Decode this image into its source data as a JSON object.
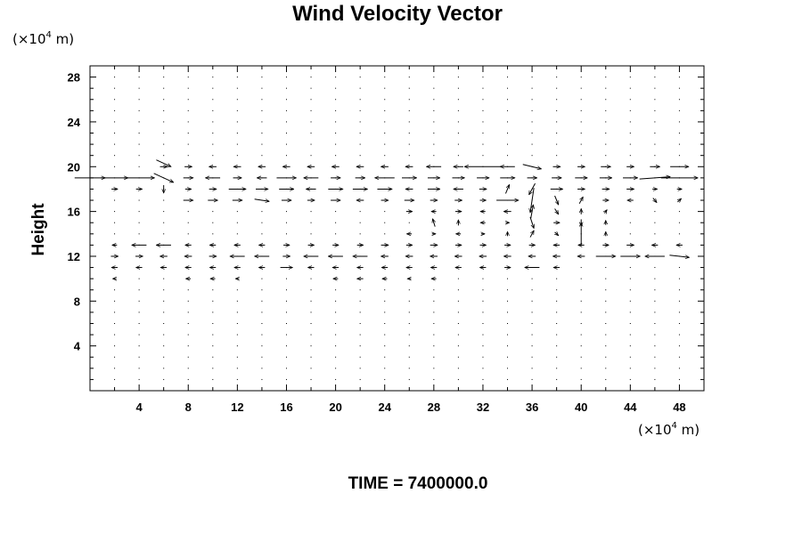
{
  "chart_data": {
    "type": "vector_field",
    "title": "Wind Velocity Vector",
    "ylabel": "Height",
    "y_unit": {
      "prefix": "(×10",
      "exponent": "4",
      "suffix": " m)"
    },
    "x_unit": {
      "prefix": "(×10",
      "exponent": "4",
      "suffix": " m)"
    },
    "xlim": [
      0,
      50
    ],
    "ylim": [
      0,
      29
    ],
    "x_ticks": [
      4,
      8,
      12,
      16,
      20,
      24,
      28,
      32,
      36,
      40,
      44,
      48
    ],
    "y_ticks": [
      4,
      8,
      12,
      16,
      20,
      24,
      28
    ],
    "time_label": "TIME = 7400000.0",
    "grid": "dots at every grid node (x step 2, y step 1)",
    "vectors": [
      {
        "x": 0.0,
        "y": 19,
        "u": 2.5,
        "v": 0.0
      },
      {
        "x": 2.0,
        "y": 19,
        "u": 2.2,
        "v": 0.0
      },
      {
        "x": 4.0,
        "y": 19,
        "u": 2.5,
        "v": 0.0
      },
      {
        "x": 6.0,
        "y": 19,
        "u": 1.6,
        "v": -0.8
      },
      {
        "x": 8.0,
        "y": 19,
        "u": 0.8,
        "v": 0.0
      },
      {
        "x": 10.0,
        "y": 19,
        "u": -1.2,
        "v": 0.0
      },
      {
        "x": 12.0,
        "y": 19,
        "u": 0.7,
        "v": 0.0
      },
      {
        "x": 14.0,
        "y": 19,
        "u": -0.8,
        "v": 0.0
      },
      {
        "x": 16.0,
        "y": 19,
        "u": 1.6,
        "v": 0.0
      },
      {
        "x": 18.0,
        "y": 19,
        "u": -1.2,
        "v": 0.0
      },
      {
        "x": 20.0,
        "y": 19,
        "u": 0.8,
        "v": 0.0
      },
      {
        "x": 22.0,
        "y": 19,
        "u": 0.8,
        "v": 0.0
      },
      {
        "x": 24.0,
        "y": 19,
        "u": -1.6,
        "v": 0.0
      },
      {
        "x": 26.0,
        "y": 19,
        "u": 1.2,
        "v": 0.0
      },
      {
        "x": 28.0,
        "y": 19,
        "u": 1.0,
        "v": 0.0
      },
      {
        "x": 30.0,
        "y": 19,
        "u": 1.0,
        "v": 0.0
      },
      {
        "x": 32.0,
        "y": 19,
        "u": 1.0,
        "v": 0.0
      },
      {
        "x": 34.0,
        "y": 19,
        "u": 1.2,
        "v": 0.0
      },
      {
        "x": 36.0,
        "y": 19,
        "u": 0.8,
        "v": 0.0
      },
      {
        "x": 38.0,
        "y": 19,
        "u": 0.8,
        "v": 0.0
      },
      {
        "x": 40.0,
        "y": 19,
        "u": 1.0,
        "v": 0.0
      },
      {
        "x": 42.0,
        "y": 19,
        "u": 1.0,
        "v": 0.0
      },
      {
        "x": 44.0,
        "y": 19,
        "u": 1.2,
        "v": 0.0
      },
      {
        "x": 46.0,
        "y": 19,
        "u": 2.5,
        "v": 0.2
      },
      {
        "x": 48.0,
        "y": 19,
        "u": 3.0,
        "v": 0.0
      },
      {
        "x": 6.0,
        "y": 20,
        "u": 0.6,
        "v": 0.0
      },
      {
        "x": 8.0,
        "y": 20,
        "u": 0.6,
        "v": 0.0
      },
      {
        "x": 10.0,
        "y": 20,
        "u": -0.6,
        "v": 0.0
      },
      {
        "x": 12.0,
        "y": 20,
        "u": -0.6,
        "v": 0.0
      },
      {
        "x": 14.0,
        "y": 20,
        "u": -0.6,
        "v": 0.0
      },
      {
        "x": 16.0,
        "y": 20,
        "u": -0.6,
        "v": 0.0
      },
      {
        "x": 18.0,
        "y": 20,
        "u": -0.6,
        "v": 0.0
      },
      {
        "x": 20.0,
        "y": 20,
        "u": -0.6,
        "v": 0.0
      },
      {
        "x": 22.0,
        "y": 20,
        "u": -0.6,
        "v": 0.0
      },
      {
        "x": 24.0,
        "y": 20,
        "u": -0.6,
        "v": 0.0
      },
      {
        "x": 26.0,
        "y": 20,
        "u": -0.6,
        "v": 0.0
      },
      {
        "x": 28.0,
        "y": 20,
        "u": -1.2,
        "v": 0.0
      },
      {
        "x": 30.0,
        "y": 20,
        "u": -0.8,
        "v": 0.0
      },
      {
        "x": 32.0,
        "y": 20,
        "u": -3.0,
        "v": 0.0
      },
      {
        "x": 34.0,
        "y": 20,
        "u": -1.2,
        "v": 0.0
      },
      {
        "x": 36.0,
        "y": 20,
        "u": 1.5,
        "v": -0.4
      },
      {
        "x": 38.0,
        "y": 20,
        "u": 0.6,
        "v": 0.0
      },
      {
        "x": 40.0,
        "y": 20,
        "u": 0.6,
        "v": 0.0
      },
      {
        "x": 42.0,
        "y": 20,
        "u": 0.8,
        "v": 0.0
      },
      {
        "x": 44.0,
        "y": 20,
        "u": 0.6,
        "v": 0.0
      },
      {
        "x": 46.0,
        "y": 20,
        "u": 0.8,
        "v": 0.0
      },
      {
        "x": 48.0,
        "y": 20,
        "u": 1.5,
        "v": 0.0
      },
      {
        "x": 6.0,
        "y": 20.3,
        "u": 1.2,
        "v": -0.6
      },
      {
        "x": 2.0,
        "y": 18,
        "u": 0.5,
        "v": 0.0
      },
      {
        "x": 4.0,
        "y": 18,
        "u": 0.5,
        "v": 0.0
      },
      {
        "x": 6.0,
        "y": 18,
        "u": 0.0,
        "v": -0.7
      },
      {
        "x": 8.0,
        "y": 18,
        "u": 0.5,
        "v": 0.0
      },
      {
        "x": 10.0,
        "y": 18,
        "u": 0.6,
        "v": 0.0
      },
      {
        "x": 12.0,
        "y": 18,
        "u": 1.4,
        "v": 0.0
      },
      {
        "x": 14.0,
        "y": 18,
        "u": 1.0,
        "v": 0.0
      },
      {
        "x": 16.0,
        "y": 18,
        "u": 1.2,
        "v": 0.0
      },
      {
        "x": 18.0,
        "y": 18,
        "u": -0.8,
        "v": 0.0
      },
      {
        "x": 20.0,
        "y": 18,
        "u": 1.2,
        "v": 0.0
      },
      {
        "x": 22.0,
        "y": 18,
        "u": 1.2,
        "v": 0.0
      },
      {
        "x": 24.0,
        "y": 18,
        "u": 1.2,
        "v": 0.0
      },
      {
        "x": 26.0,
        "y": 18,
        "u": -0.6,
        "v": 0.0
      },
      {
        "x": 28.0,
        "y": 18,
        "u": 1.0,
        "v": 0.0
      },
      {
        "x": 30.0,
        "y": 18,
        "u": -0.8,
        "v": 0.0
      },
      {
        "x": 32.0,
        "y": 18,
        "u": 0.6,
        "v": 0.0
      },
      {
        "x": 34.0,
        "y": 18,
        "u": 0.3,
        "v": 0.8
      },
      {
        "x": 36.0,
        "y": 18,
        "u": -0.5,
        "v": -1.0
      },
      {
        "x": 38.0,
        "y": 18,
        "u": 1.0,
        "v": 0.0
      },
      {
        "x": 40.0,
        "y": 18,
        "u": 0.6,
        "v": 0.0
      },
      {
        "x": 42.0,
        "y": 18,
        "u": 0.6,
        "v": 0.0
      },
      {
        "x": 44.0,
        "y": 18,
        "u": 0.6,
        "v": 0.0
      },
      {
        "x": 46.0,
        "y": 18,
        "u": 0.4,
        "v": 0.0
      },
      {
        "x": 48.0,
        "y": 18,
        "u": 0.4,
        "v": 0.0
      },
      {
        "x": 8.0,
        "y": 17,
        "u": 0.8,
        "v": 0.0
      },
      {
        "x": 10.0,
        "y": 17,
        "u": 0.8,
        "v": 0.0
      },
      {
        "x": 12.0,
        "y": 17,
        "u": 0.8,
        "v": 0.0
      },
      {
        "x": 14.0,
        "y": 17,
        "u": 1.2,
        "v": -0.2
      },
      {
        "x": 16.0,
        "y": 17,
        "u": 0.8,
        "v": 0.0
      },
      {
        "x": 18.0,
        "y": 17,
        "u": 0.6,
        "v": 0.0
      },
      {
        "x": 20.0,
        "y": 17,
        "u": 0.8,
        "v": 0.0
      },
      {
        "x": 22.0,
        "y": 17,
        "u": -0.6,
        "v": 0.0
      },
      {
        "x": 24.0,
        "y": 17,
        "u": 0.6,
        "v": 0.0
      },
      {
        "x": 26.0,
        "y": 17,
        "u": 0.8,
        "v": 0.0
      },
      {
        "x": 28.0,
        "y": 17,
        "u": 0.6,
        "v": 0.0
      },
      {
        "x": 30.0,
        "y": 17,
        "u": 0.6,
        "v": 0.0
      },
      {
        "x": 32.0,
        "y": 17,
        "u": 0.5,
        "v": 0.0
      },
      {
        "x": 34.0,
        "y": 17,
        "u": 1.8,
        "v": 0.0
      },
      {
        "x": 36.0,
        "y": 17,
        "u": -0.3,
        "v": -2.2
      },
      {
        "x": 38.0,
        "y": 17,
        "u": 0.3,
        "v": -0.8
      },
      {
        "x": 40.0,
        "y": 17,
        "u": 0.3,
        "v": 0.6
      },
      {
        "x": 42.0,
        "y": 17,
        "u": 0.5,
        "v": 0.0
      },
      {
        "x": 44.0,
        "y": 17,
        "u": -0.5,
        "v": 0.0
      },
      {
        "x": 46.0,
        "y": 17,
        "u": 0.3,
        "v": -0.4
      },
      {
        "x": 48.0,
        "y": 17,
        "u": 0.3,
        "v": 0.3
      },
      {
        "x": 26.0,
        "y": 16,
        "u": 0.5,
        "v": 0.0
      },
      {
        "x": 28.0,
        "y": 16,
        "u": -0.4,
        "v": 0.0
      },
      {
        "x": 30.0,
        "y": 16,
        "u": 0.5,
        "v": 0.0
      },
      {
        "x": 32.0,
        "y": 16,
        "u": -0.4,
        "v": 0.0
      },
      {
        "x": 34.0,
        "y": 16,
        "u": -0.6,
        "v": 0.0
      },
      {
        "x": 36.0,
        "y": 16,
        "u": 0.2,
        "v": 1.2
      },
      {
        "x": 38.0,
        "y": 16,
        "u": 0.3,
        "v": -0.5
      },
      {
        "x": 40.0,
        "y": 16,
        "u": 0.0,
        "v": 0.5
      },
      {
        "x": 42.0,
        "y": 16,
        "u": 0.2,
        "v": 0.3
      },
      {
        "x": 28.0,
        "y": 15,
        "u": -0.2,
        "v": 0.7
      },
      {
        "x": 30.0,
        "y": 15,
        "u": 0.0,
        "v": 0.5
      },
      {
        "x": 32.0,
        "y": 15,
        "u": -0.4,
        "v": 0.0
      },
      {
        "x": 34.0,
        "y": 15,
        "u": 0.3,
        "v": 0.0
      },
      {
        "x": 36.0,
        "y": 15,
        "u": 0.3,
        "v": -1.0
      },
      {
        "x": 38.0,
        "y": 15,
        "u": 0.5,
        "v": 0.0
      },
      {
        "x": 40.0,
        "y": 15,
        "u": 0.0,
        "v": -0.6
      },
      {
        "x": 42.0,
        "y": 15,
        "u": 0.0,
        "v": 0.4
      },
      {
        "x": 26.0,
        "y": 14,
        "u": -0.4,
        "v": 0.0
      },
      {
        "x": 28.0,
        "y": 14,
        "u": 0.3,
        "v": 0.0
      },
      {
        "x": 30.0,
        "y": 14,
        "u": -0.4,
        "v": 0.0
      },
      {
        "x": 32.0,
        "y": 14,
        "u": 0.3,
        "v": 0.0
      },
      {
        "x": 34.0,
        "y": 14,
        "u": 0.0,
        "v": 0.4
      },
      {
        "x": 36.0,
        "y": 14,
        "u": 0.3,
        "v": 0.6
      },
      {
        "x": 38.0,
        "y": 14,
        "u": 0.3,
        "v": -0.3
      },
      {
        "x": 40.0,
        "y": 14,
        "u": 0.0,
        "v": 2.0
      },
      {
        "x": 42.0,
        "y": 14,
        "u": 0.0,
        "v": 0.4
      },
      {
        "x": 2.0,
        "y": 13,
        "u": -0.4,
        "v": 0.0
      },
      {
        "x": 4.0,
        "y": 13,
        "u": -1.2,
        "v": 0.0
      },
      {
        "x": 6.0,
        "y": 13,
        "u": -1.2,
        "v": 0.0
      },
      {
        "x": 8.0,
        "y": 13,
        "u": -0.5,
        "v": 0.0
      },
      {
        "x": 10.0,
        "y": 13,
        "u": -0.5,
        "v": 0.0
      },
      {
        "x": 12.0,
        "y": 13,
        "u": -0.5,
        "v": 0.0
      },
      {
        "x": 14.0,
        "y": 13,
        "u": -0.5,
        "v": 0.0
      },
      {
        "x": 16.0,
        "y": 13,
        "u": 0.5,
        "v": 0.0
      },
      {
        "x": 18.0,
        "y": 13,
        "u": 0.5,
        "v": 0.0
      },
      {
        "x": 20.0,
        "y": 13,
        "u": 0.5,
        "v": 0.0
      },
      {
        "x": 22.0,
        "y": 13,
        "u": 0.5,
        "v": 0.0
      },
      {
        "x": 24.0,
        "y": 13,
        "u": 0.6,
        "v": 0.0
      },
      {
        "x": 26.0,
        "y": 13,
        "u": 0.5,
        "v": 0.0
      },
      {
        "x": 28.0,
        "y": 13,
        "u": 0.6,
        "v": 0.0
      },
      {
        "x": 30.0,
        "y": 13,
        "u": 0.5,
        "v": 0.0
      },
      {
        "x": 32.0,
        "y": 13,
        "u": 0.5,
        "v": 0.0
      },
      {
        "x": 34.0,
        "y": 13,
        "u": 0.5,
        "v": 0.0
      },
      {
        "x": 36.0,
        "y": 13,
        "u": 0.5,
        "v": 0.0
      },
      {
        "x": 38.0,
        "y": 13,
        "u": -0.5,
        "v": 0.0
      },
      {
        "x": 40.0,
        "y": 13,
        "u": -0.5,
        "v": 0.0
      },
      {
        "x": 42.0,
        "y": 13,
        "u": 0.5,
        "v": 0.0
      },
      {
        "x": 44.0,
        "y": 13,
        "u": 0.6,
        "v": 0.0
      },
      {
        "x": 46.0,
        "y": 13,
        "u": -0.5,
        "v": 0.0
      },
      {
        "x": 48.0,
        "y": 13,
        "u": -0.5,
        "v": 0.0
      },
      {
        "x": 2.0,
        "y": 12,
        "u": 0.6,
        "v": 0.0
      },
      {
        "x": 4.0,
        "y": 12,
        "u": 0.6,
        "v": 0.0
      },
      {
        "x": 6.0,
        "y": 12,
        "u": -0.6,
        "v": 0.0
      },
      {
        "x": 8.0,
        "y": 12,
        "u": -0.6,
        "v": 0.0
      },
      {
        "x": 10.0,
        "y": 12,
        "u": 0.6,
        "v": 0.0
      },
      {
        "x": 12.0,
        "y": 12,
        "u": -1.2,
        "v": 0.0
      },
      {
        "x": 14.0,
        "y": 12,
        "u": -1.2,
        "v": 0.0
      },
      {
        "x": 16.0,
        "y": 12,
        "u": 0.6,
        "v": 0.0
      },
      {
        "x": 18.0,
        "y": 12,
        "u": -1.2,
        "v": 0.0
      },
      {
        "x": 20.0,
        "y": 12,
        "u": -1.2,
        "v": 0.0
      },
      {
        "x": 22.0,
        "y": 12,
        "u": -1.2,
        "v": 0.0
      },
      {
        "x": 24.0,
        "y": 12,
        "u": -0.6,
        "v": 0.0
      },
      {
        "x": 26.0,
        "y": 12,
        "u": -0.6,
        "v": 0.0
      },
      {
        "x": 28.0,
        "y": 12,
        "u": -0.6,
        "v": 0.0
      },
      {
        "x": 30.0,
        "y": 12,
        "u": -0.6,
        "v": 0.0
      },
      {
        "x": 32.0,
        "y": 12,
        "u": -0.6,
        "v": 0.0
      },
      {
        "x": 34.0,
        "y": 12,
        "u": -0.6,
        "v": 0.0
      },
      {
        "x": 36.0,
        "y": 12,
        "u": -0.6,
        "v": 0.0
      },
      {
        "x": 38.0,
        "y": 12,
        "u": -0.6,
        "v": 0.0
      },
      {
        "x": 40.0,
        "y": 12,
        "u": -0.6,
        "v": 0.0
      },
      {
        "x": 42.0,
        "y": 12,
        "u": 1.6,
        "v": 0.0
      },
      {
        "x": 44.0,
        "y": 12,
        "u": 1.6,
        "v": 0.0
      },
      {
        "x": 46.0,
        "y": 12,
        "u": -1.6,
        "v": 0.0
      },
      {
        "x": 48.0,
        "y": 12,
        "u": 1.6,
        "v": -0.2
      },
      {
        "x": 2.0,
        "y": 11,
        "u": -0.5,
        "v": 0.0
      },
      {
        "x": 4.0,
        "y": 11,
        "u": -0.5,
        "v": 0.0
      },
      {
        "x": 6.0,
        "y": 11,
        "u": -0.5,
        "v": 0.0
      },
      {
        "x": 8.0,
        "y": 11,
        "u": -0.5,
        "v": 0.0
      },
      {
        "x": 10.0,
        "y": 11,
        "u": -0.5,
        "v": 0.0
      },
      {
        "x": 12.0,
        "y": 11,
        "u": -0.5,
        "v": 0.0
      },
      {
        "x": 14.0,
        "y": 11,
        "u": -0.5,
        "v": 0.0
      },
      {
        "x": 16.0,
        "y": 11,
        "u": 1.0,
        "v": 0.0
      },
      {
        "x": 18.0,
        "y": 11,
        "u": -0.5,
        "v": 0.0
      },
      {
        "x": 20.0,
        "y": 11,
        "u": -0.5,
        "v": 0.0
      },
      {
        "x": 22.0,
        "y": 11,
        "u": -0.5,
        "v": 0.0
      },
      {
        "x": 24.0,
        "y": 11,
        "u": -0.5,
        "v": 0.0
      },
      {
        "x": 26.0,
        "y": 11,
        "u": -0.5,
        "v": 0.0
      },
      {
        "x": 28.0,
        "y": 11,
        "u": -0.5,
        "v": 0.0
      },
      {
        "x": 30.0,
        "y": 11,
        "u": -0.5,
        "v": 0.0
      },
      {
        "x": 32.0,
        "y": 11,
        "u": -0.5,
        "v": 0.0
      },
      {
        "x": 34.0,
        "y": 11,
        "u": 0.5,
        "v": 0.0
      },
      {
        "x": 36.0,
        "y": 11,
        "u": -1.2,
        "v": 0.0
      },
      {
        "x": 38.0,
        "y": 11,
        "u": -0.5,
        "v": 0.0
      },
      {
        "x": 2.0,
        "y": 10,
        "u": -0.3,
        "v": 0.0
      },
      {
        "x": 8.0,
        "y": 10,
        "u": -0.4,
        "v": 0.0
      },
      {
        "x": 10.0,
        "y": 10,
        "u": -0.4,
        "v": 0.0
      },
      {
        "x": 12.0,
        "y": 10,
        "u": -0.3,
        "v": 0.0
      },
      {
        "x": 20.0,
        "y": 10,
        "u": -0.4,
        "v": 0.0
      },
      {
        "x": 22.0,
        "y": 10,
        "u": -0.5,
        "v": 0.0
      },
      {
        "x": 24.0,
        "y": 10,
        "u": -0.4,
        "v": 0.0
      },
      {
        "x": 26.0,
        "y": 10,
        "u": -0.3,
        "v": 0.0
      },
      {
        "x": 28.0,
        "y": 10,
        "u": -0.4,
        "v": 0.0
      }
    ]
  }
}
